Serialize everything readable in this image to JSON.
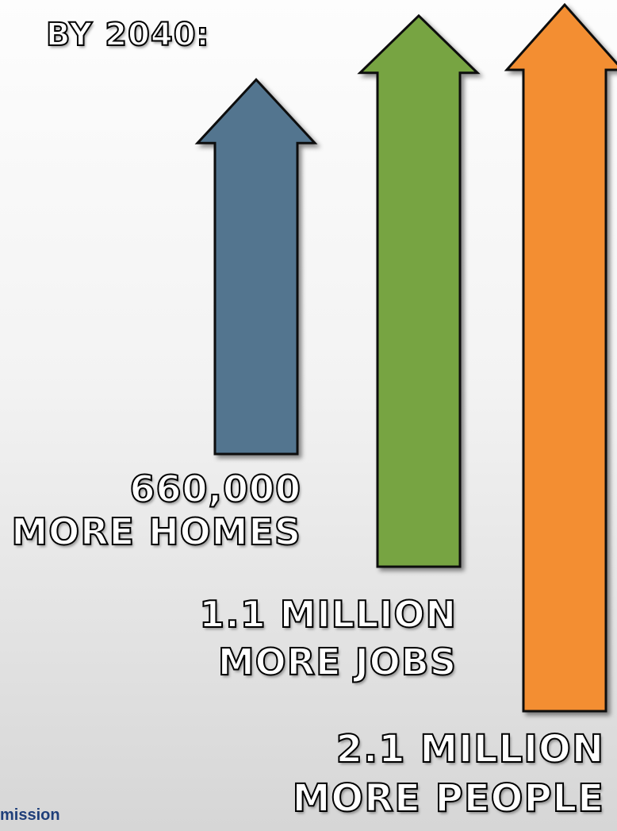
{
  "headline": "BY 2040:",
  "arrows": [
    {
      "id": "homes",
      "value": "660,000",
      "label": "MORE HOMES",
      "color": "#52758f",
      "relative_height": 0.53
    },
    {
      "id": "jobs",
      "value": "1.1 MILLION",
      "label": "MORE JOBS",
      "color": "#77a443",
      "relative_height": 0.78
    },
    {
      "id": "people",
      "value": "2.1 MILLION",
      "label": "MORE PEOPLE",
      "color": "#f38e30",
      "relative_height": 1.0
    }
  ],
  "footer_fragment": "mission",
  "icons": [
    "up-arrow-icon"
  ]
}
